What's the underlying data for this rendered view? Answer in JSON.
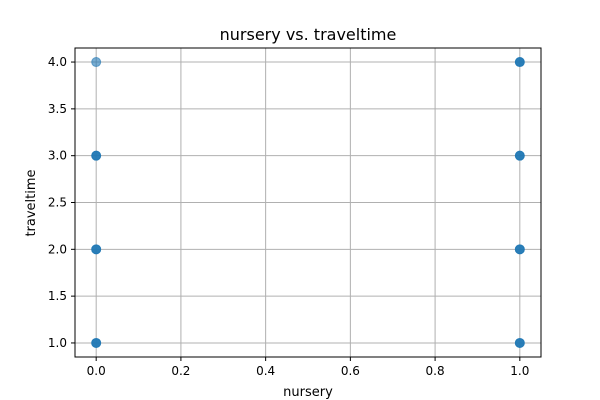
{
  "chart_data": {
    "type": "scatter",
    "title": "nursery vs. traveltime",
    "xlabel": "nursery",
    "ylabel": "traveltime",
    "xlim": [
      -0.05,
      1.05
    ],
    "ylim": [
      0.85,
      4.15
    ],
    "xticks": [
      "0.0",
      "0.2",
      "0.4",
      "0.6",
      "0.8",
      "1.0"
    ],
    "yticks": [
      "1.0",
      "1.5",
      "2.0",
      "2.5",
      "3.0",
      "3.5",
      "4.0"
    ],
    "grid": true,
    "point_color": "#1f77b4",
    "x": [
      0,
      0,
      0,
      0,
      1,
      1,
      1,
      1
    ],
    "y": [
      1,
      2,
      3,
      4,
      1,
      2,
      3,
      4
    ],
    "alpha": [
      0.95,
      0.95,
      0.95,
      0.6,
      0.95,
      0.95,
      0.95,
      0.95
    ]
  }
}
